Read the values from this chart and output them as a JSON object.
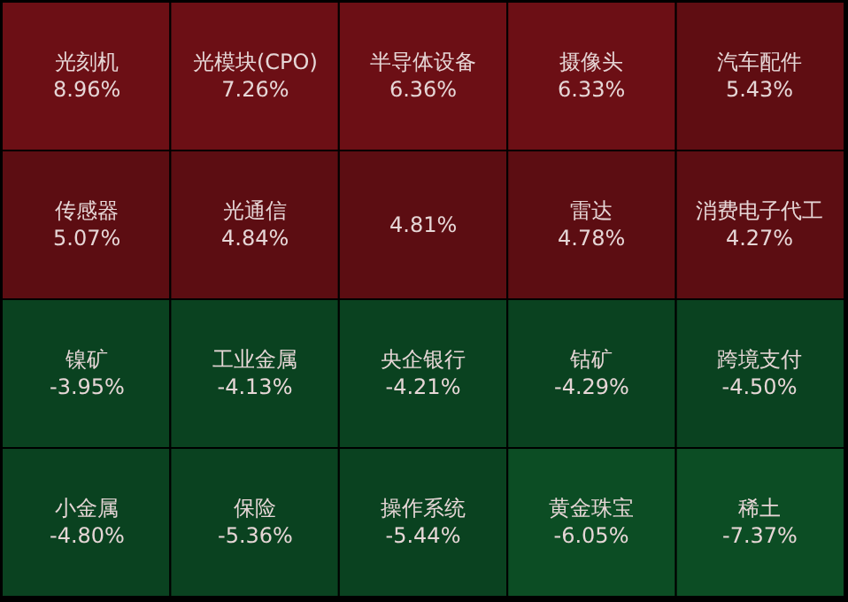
{
  "chart_data": {
    "type": "other",
    "categories": [
      "光刻机",
      "光模块(CPO)",
      "半导体设备",
      "摄像头",
      "汽车配件",
      "传感器",
      "光通信",
      null,
      "雷达",
      "消费电子代工",
      "镍矿",
      "工业金属",
      "央企银行",
      "钴矿",
      "跨境支付",
      "小金属",
      "保险",
      "操作系统",
      "黄金珠宝",
      "稀土"
    ],
    "values": [
      8.96,
      7.26,
      6.36,
      6.33,
      5.43,
      5.07,
      4.84,
      4.81,
      4.78,
      4.27,
      -3.95,
      -4.13,
      -4.21,
      -4.29,
      -4.5,
      -4.8,
      -5.36,
      -5.44,
      -6.05,
      -7.37
    ],
    "value_labels": [
      "8.96%",
      "7.26%",
      "6.36%",
      "6.33%",
      "5.43%",
      "5.07%",
      "4.84%",
      "4.81%",
      "4.78%",
      "4.27%",
      "-3.95%",
      "-4.13%",
      "-4.21%",
      "-4.29%",
      "-4.50%",
      "-4.80%",
      "-5.36%",
      "-5.44%",
      "-6.05%",
      "-7.37%"
    ],
    "colors": [
      "#6c0f15",
      "#6c0f15",
      "#6c0f15",
      "#6c0f15",
      "#5f0d12",
      "#5c0d12",
      "#5c0d12",
      "#5c0d12",
      "#5c0d12",
      "#5c0d12",
      "#0a4220",
      "#0a4220",
      "#0a4220",
      "#0a4220",
      "#0a4220",
      "#0a4220",
      "#0a4220",
      "#0a4220",
      "#0c4d24",
      "#0c4d24"
    ]
  }
}
